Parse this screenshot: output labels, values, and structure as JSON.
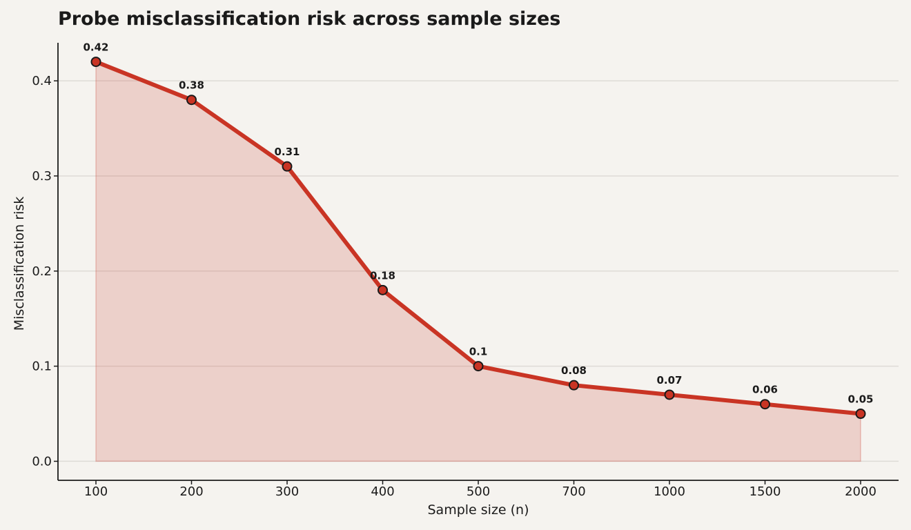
{
  "chart_data": {
    "type": "area",
    "title": "Probe misclassification risk across sample sizes",
    "xlabel": "Sample size (n)",
    "ylabel": "Misclassification risk",
    "categories": [
      "100",
      "200",
      "300",
      "400",
      "500",
      "700",
      "1000",
      "1500",
      "2000"
    ],
    "values": [
      0.42,
      0.38,
      0.31,
      0.18,
      0.1,
      0.08,
      0.07,
      0.06,
      0.05
    ],
    "data_labels": [
      "0.42",
      "0.38",
      "0.31",
      "0.18",
      "0.1",
      "0.08",
      "0.07",
      "0.06",
      "0.05"
    ],
    "yticks": [
      0.0,
      0.1,
      0.2,
      0.3,
      0.4
    ],
    "ytick_labels": [
      "0.0",
      "0.1",
      "0.2",
      "0.3",
      "0.4"
    ],
    "ylim": [
      -0.02,
      0.44
    ],
    "grid": "horizontal",
    "legend": "none",
    "colors": {
      "line": "#c93424",
      "fill": "#c93424",
      "marker_edge": "#1a1a1a",
      "grid": "#dedbd6",
      "axis": "#1a1a1a",
      "background": "#f5f3ef"
    }
  }
}
